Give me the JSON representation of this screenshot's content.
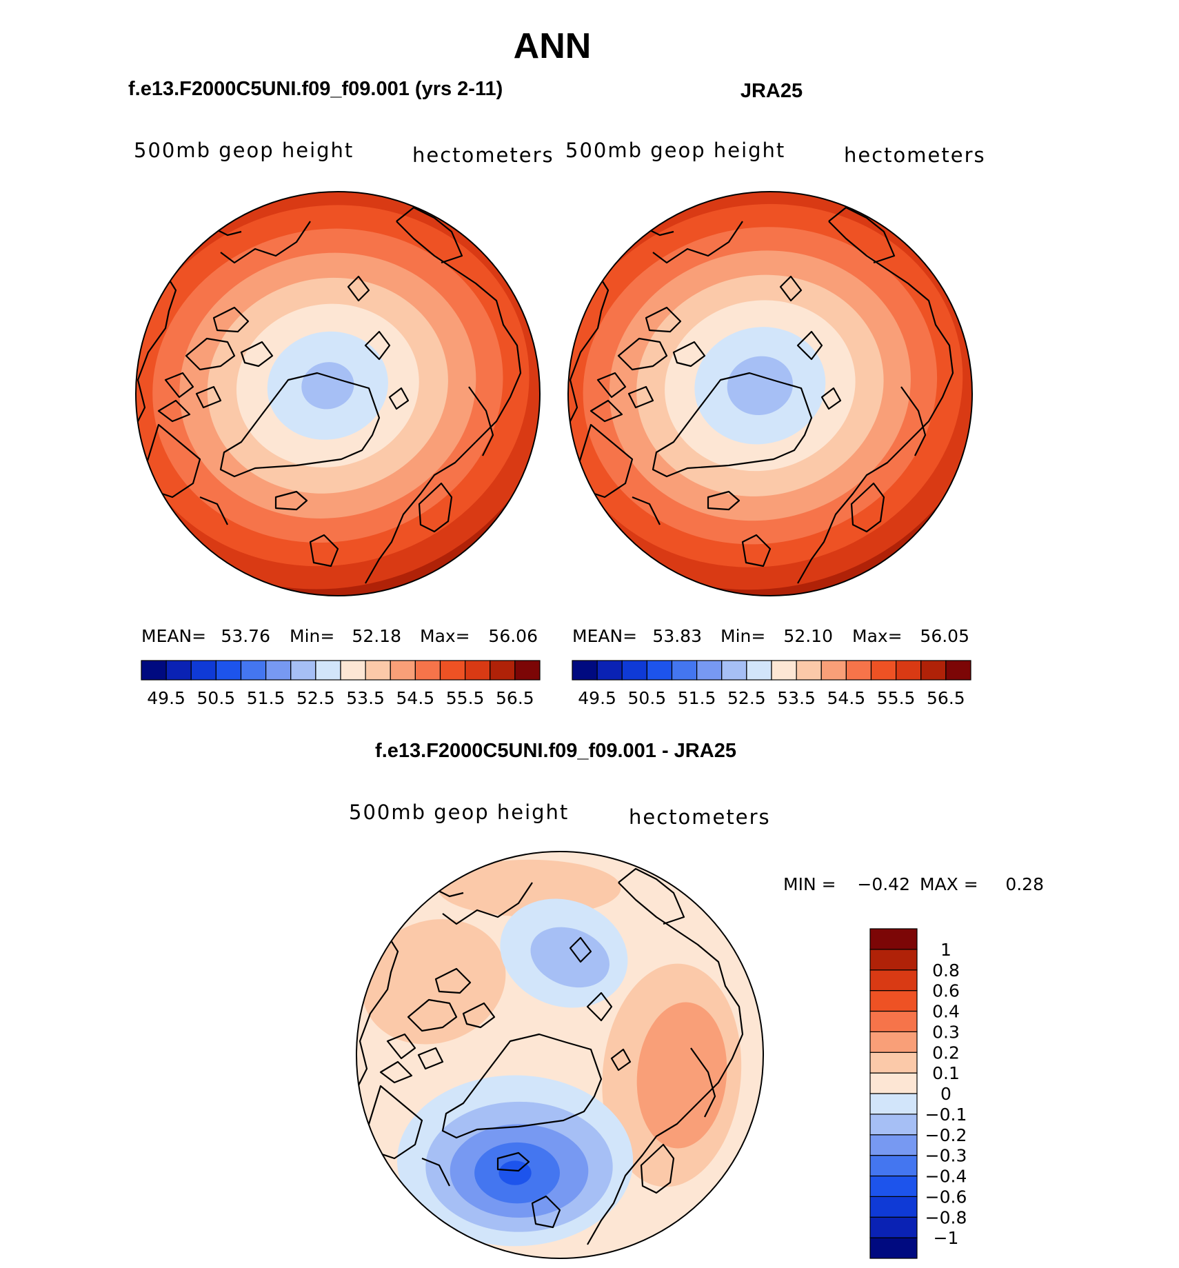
{
  "figure": {
    "season_title": "ANN"
  },
  "chart_data": [
    {
      "type": "heatmap",
      "projection": "north-polar-stereographic",
      "title": "f.e13.F2000C5UNI.f09_f09.001 (yrs 2-11)",
      "left_label": "500mb geop height",
      "right_label": "hectometers",
      "stats": {
        "mean_label": "MEAN=",
        "mean": "53.76",
        "min_label": "Min=",
        "min": "52.18",
        "max_label": "Max=",
        "max": "56.06"
      },
      "field": {
        "pole_value": 52.2,
        "pole_offset": [
          -0.05,
          -0.04
        ],
        "edge_value": 56.06
      },
      "colorbar": {
        "orientation": "horizontal",
        "levels": [
          49.5,
          50,
          50.5,
          51,
          51.5,
          52,
          52.5,
          53,
          53.5,
          54,
          54.5,
          55,
          55.5,
          56,
          56.5
        ],
        "tick_labels": [
          "49.5",
          "50.5",
          "51.5",
          "52.5",
          "53.5",
          "54.5",
          "55.5",
          "56.5"
        ],
        "colors": [
          "#000a80",
          "#0a22b4",
          "#0f3ad6",
          "#1d54ec",
          "#4476f0",
          "#7799f2",
          "#a6bff5",
          "#d2e5fa",
          "#fde6d4",
          "#fbc9a9",
          "#f99f78",
          "#f6744a",
          "#ee5224",
          "#d93a14",
          "#b02208",
          "#7c0606"
        ]
      }
    },
    {
      "type": "heatmap",
      "projection": "north-polar-stereographic",
      "title": "JRA25",
      "left_label": "500mb geop height",
      "right_label": "hectometers",
      "stats": {
        "mean_label": "MEAN=",
        "mean": "53.83",
        "min_label": "Min=",
        "min": "52.10",
        "max_label": "Max=",
        "max": "56.05"
      },
      "field": {
        "pole_value": 52.1,
        "pole_offset": [
          -0.05,
          -0.04
        ],
        "edge_value": 56.05
      },
      "colorbar": {
        "orientation": "horizontal",
        "levels": [
          49.5,
          50,
          50.5,
          51,
          51.5,
          52,
          52.5,
          53,
          53.5,
          54,
          54.5,
          55,
          55.5,
          56,
          56.5
        ],
        "tick_labels": [
          "49.5",
          "50.5",
          "51.5",
          "52.5",
          "53.5",
          "54.5",
          "55.5",
          "56.5"
        ],
        "colors": [
          "#000a80",
          "#0a22b4",
          "#0f3ad6",
          "#1d54ec",
          "#4476f0",
          "#7799f2",
          "#a6bff5",
          "#d2e5fa",
          "#fde6d4",
          "#fbc9a9",
          "#f99f78",
          "#f6744a",
          "#ee5224",
          "#d93a14",
          "#b02208",
          "#7c0606"
        ]
      }
    },
    {
      "type": "heatmap",
      "projection": "north-polar-stereographic",
      "title": "f.e13.F2000C5UNI.f09_f09.001 - JRA25",
      "left_label": "500mb geop height",
      "right_label": "hectometers",
      "stats": {
        "min_label": "MIN =",
        "min": "−0.42",
        "max_label": "MAX =",
        "max": "0.28"
      },
      "field": {
        "min": -0.42,
        "max": 0.28
      },
      "colorbar": {
        "orientation": "vertical",
        "levels": [
          -1,
          -0.8,
          -0.6,
          -0.4,
          -0.3,
          -0.2,
          -0.1,
          0,
          0.1,
          0.2,
          0.3,
          0.4,
          0.6,
          0.8,
          1
        ],
        "tick_labels": [
          "1",
          "0.8",
          "0.6",
          "0.4",
          "0.3",
          "0.2",
          "0.1",
          "0",
          "−0.1",
          "−0.2",
          "−0.3",
          "−0.4",
          "−0.6",
          "−0.8",
          "−1"
        ],
        "colors": [
          "#000a80",
          "#0a22b4",
          "#0f3ad6",
          "#1d54ec",
          "#4476f0",
          "#7799f2",
          "#a6bff5",
          "#d2e5fa",
          "#fde6d4",
          "#fbc9a9",
          "#f99f78",
          "#f6744a",
          "#ee5224",
          "#d93a14",
          "#b02208",
          "#7c0606"
        ]
      }
    }
  ]
}
